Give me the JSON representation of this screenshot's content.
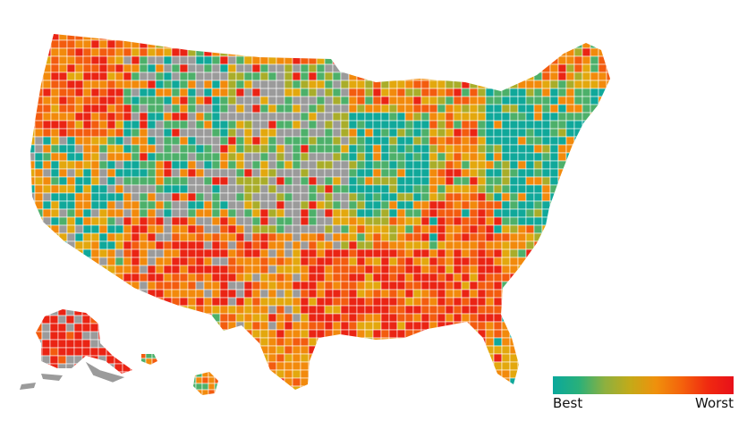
{
  "legend": {
    "best_label": "Best",
    "worst_label": "Worst",
    "gradient_colors": [
      "#0aa89c",
      "#29b07a",
      "#8cb040",
      "#c4aa18",
      "#f0900c",
      "#f4620c",
      "#f02a10",
      "#e8101a"
    ]
  },
  "colors": {
    "teal": "#10a89a",
    "green": "#4db06a",
    "olive": "#a9ad2a",
    "yellow": "#e3a80e",
    "orange": "#f28a0c",
    "dark_orange": "#f35c0f",
    "red": "#ea2414",
    "no_data": "#9b9b9b",
    "borders": "#ffffff"
  }
}
